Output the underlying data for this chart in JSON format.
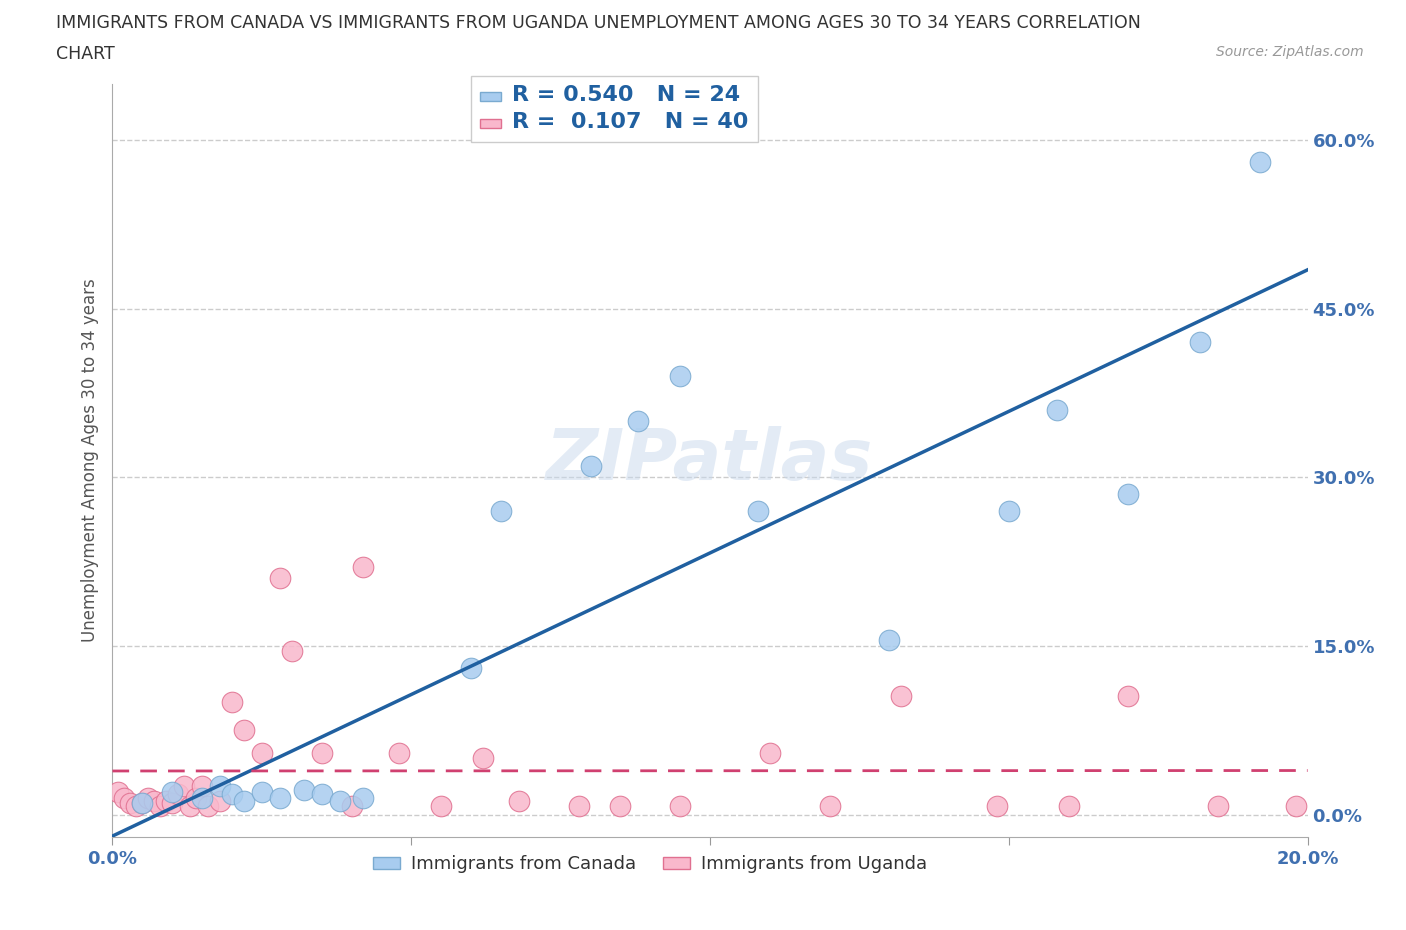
{
  "title_line1": "IMMIGRANTS FROM CANADA VS IMMIGRANTS FROM UGANDA UNEMPLOYMENT AMONG AGES 30 TO 34 YEARS CORRELATION",
  "title_line2": "CHART",
  "source_text": "Source: ZipAtlas.com",
  "ylabel": "Unemployment Among Ages 30 to 34 years",
  "xlim": [
    0.0,
    0.2
  ],
  "ylim": [
    -0.02,
    0.65
  ],
  "yticks": [
    0.0,
    0.15,
    0.3,
    0.45,
    0.6
  ],
  "ytick_labels": [
    "0.0%",
    "15.0%",
    "30.0%",
    "45.0%",
    "60.0%"
  ],
  "xticks": [
    0.0,
    0.05,
    0.1,
    0.15,
    0.2
  ],
  "xtick_labels": [
    "0.0%",
    "",
    "",
    "",
    "20.0%"
  ],
  "canada_color": "#A8CCEF",
  "uganda_color": "#F9B8CC",
  "canada_edge_color": "#7AAAD0",
  "uganda_edge_color": "#E07090",
  "canada_line_color": "#2060A0",
  "uganda_line_color": "#D04070",
  "tick_color": "#4070B0",
  "R_canada": 0.54,
  "N_canada": 24,
  "R_uganda": 0.107,
  "N_uganda": 40,
  "canada_x": [
    0.005,
    0.01,
    0.015,
    0.018,
    0.02,
    0.022,
    0.025,
    0.028,
    0.032,
    0.035,
    0.038,
    0.042,
    0.06,
    0.065,
    0.08,
    0.088,
    0.095,
    0.108,
    0.13,
    0.15,
    0.158,
    0.17,
    0.182,
    0.192
  ],
  "canada_y": [
    0.01,
    0.02,
    0.015,
    0.025,
    0.018,
    0.012,
    0.02,
    0.015,
    0.022,
    0.018,
    0.012,
    0.015,
    0.13,
    0.27,
    0.31,
    0.35,
    0.39,
    0.27,
    0.155,
    0.27,
    0.36,
    0.285,
    0.42,
    0.58
  ],
  "uganda_x": [
    0.001,
    0.002,
    0.003,
    0.004,
    0.005,
    0.006,
    0.007,
    0.008,
    0.009,
    0.01,
    0.011,
    0.012,
    0.013,
    0.014,
    0.015,
    0.016,
    0.018,
    0.02,
    0.022,
    0.025,
    0.028,
    0.03,
    0.035,
    0.04,
    0.042,
    0.048,
    0.055,
    0.062,
    0.068,
    0.078,
    0.085,
    0.095,
    0.11,
    0.12,
    0.132,
    0.148,
    0.16,
    0.17,
    0.185,
    0.198
  ],
  "uganda_y": [
    0.02,
    0.015,
    0.01,
    0.008,
    0.01,
    0.015,
    0.012,
    0.008,
    0.012,
    0.01,
    0.018,
    0.025,
    0.008,
    0.015,
    0.025,
    0.008,
    0.012,
    0.1,
    0.075,
    0.055,
    0.21,
    0.145,
    0.055,
    0.008,
    0.22,
    0.055,
    0.008,
    0.05,
    0.012,
    0.008,
    0.008,
    0.008,
    0.055,
    0.008,
    0.105,
    0.008,
    0.008,
    0.105,
    0.008,
    0.008
  ],
  "watermark": "ZIPatlas",
  "background_color": "#FFFFFF",
  "grid_color": "#CCCCCC"
}
